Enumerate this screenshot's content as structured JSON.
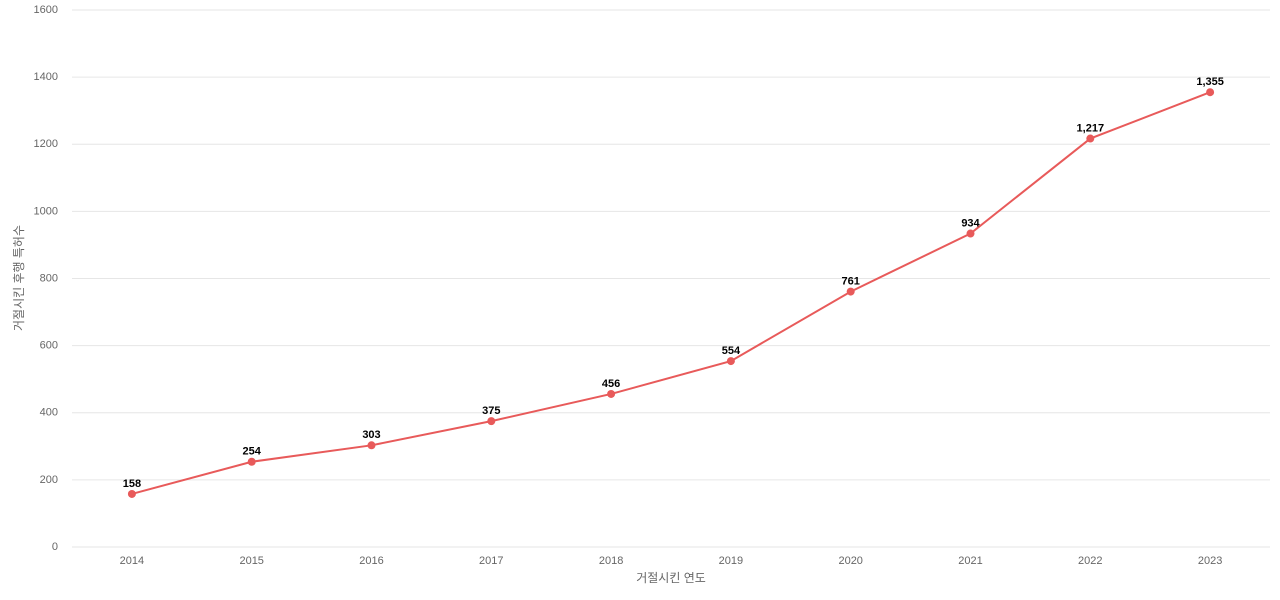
{
  "chart_data": {
    "type": "line",
    "x_label": "거절시킨 연도",
    "y_label": "거절시킨 후행 특허수",
    "categories": [
      "2014",
      "2015",
      "2016",
      "2017",
      "2018",
      "2019",
      "2020",
      "2021",
      "2022",
      "2023"
    ],
    "values": [
      158,
      254,
      303,
      375,
      456,
      554,
      761,
      934,
      1217,
      1355
    ],
    "value_labels": [
      "158",
      "254",
      "303",
      "375",
      "456",
      "554",
      "761",
      "934",
      "1,217",
      "1,355"
    ],
    "color": "#e85a5a",
    "ylim": [
      0,
      1600
    ],
    "yticks": [
      0,
      200,
      400,
      600,
      800,
      1000,
      1200,
      1400,
      1600
    ],
    "grid": true
  }
}
